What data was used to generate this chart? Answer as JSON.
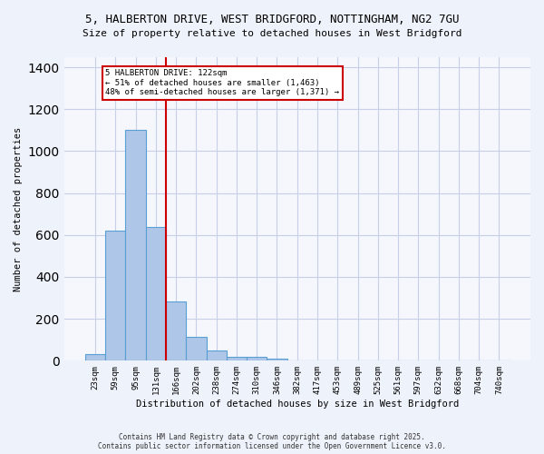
{
  "title_line1": "5, HALBERTON DRIVE, WEST BRIDGFORD, NOTTINGHAM, NG2 7GU",
  "title_line2": "Size of property relative to detached houses in West Bridgford",
  "xlabel": "Distribution of detached houses by size in West Bridgford",
  "ylabel": "Number of detached properties",
  "bin_labels": [
    "23sqm",
    "59sqm",
    "95sqm",
    "131sqm",
    "166sqm",
    "202sqm",
    "238sqm",
    "274sqm",
    "310sqm",
    "346sqm",
    "382sqm",
    "417sqm",
    "453sqm",
    "489sqm",
    "525sqm",
    "561sqm",
    "597sqm",
    "632sqm",
    "668sqm",
    "704sqm",
    "740sqm"
  ],
  "bar_heights": [
    30,
    620,
    1100,
    640,
    285,
    115,
    48,
    20,
    18,
    12,
    0,
    0,
    0,
    0,
    0,
    0,
    0,
    0,
    0,
    0,
    0
  ],
  "bar_color": "#aec6e8",
  "bar_edge_color": "#5a9fd4",
  "vline_color": "#cc0000",
  "annotation_text": "5 HALBERTON DRIVE: 122sqm\n← 51% of detached houses are smaller (1,463)\n48% of semi-detached houses are larger (1,371) →",
  "annotation_box_color": "#ffffff",
  "annotation_box_edge": "#cc0000",
  "footnote1": "Contains HM Land Registry data © Crown copyright and database right 2025.",
  "footnote2": "Contains public sector information licensed under the Open Government Licence v3.0.",
  "bg_color": "#eef2fa",
  "plot_bg_color": "#f5f7fd",
  "grid_color": "#c8d0e8",
  "ylim": [
    0,
    1450
  ],
  "vline_position": 3.5
}
